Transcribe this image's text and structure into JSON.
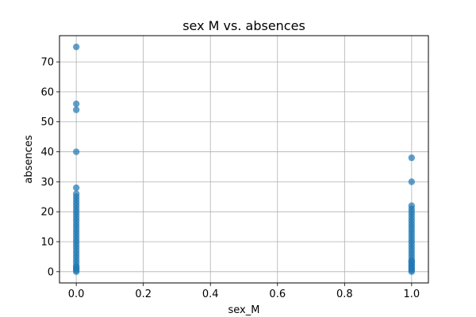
{
  "chart_data": {
    "type": "scatter",
    "title": "sex M vs. absences",
    "xlabel": "sex_M",
    "ylabel": "absences",
    "xlim": [
      -0.05,
      1.05
    ],
    "ylim": [
      -3.75,
      78.75
    ],
    "xticks": [
      "0.0",
      "0.2",
      "0.4",
      "0.6",
      "0.8",
      "1.0"
    ],
    "yticks": [
      "0",
      "10",
      "20",
      "30",
      "40",
      "50",
      "60",
      "70"
    ],
    "grid": true,
    "marker_color": "#1f77b4",
    "marker_alpha": 0.7,
    "series": [
      {
        "x": [
          0,
          0,
          0,
          0,
          0,
          0,
          0,
          0,
          0,
          0,
          0,
          0,
          0,
          0,
          0,
          0,
          0,
          0,
          0,
          0,
          0,
          0,
          0,
          0,
          0,
          0,
          0,
          0,
          0,
          0,
          0,
          0,
          0,
          0,
          1,
          1,
          1,
          1,
          1,
          1,
          1,
          1,
          1,
          1,
          1,
          1,
          1,
          1,
          1,
          1,
          1,
          1,
          1,
          1,
          1,
          1,
          1,
          1,
          1,
          1,
          1,
          1,
          1
        ],
        "y": [
          0,
          1,
          2,
          3,
          4,
          5,
          6,
          7,
          8,
          9,
          10,
          11,
          12,
          13,
          14,
          15,
          16,
          17,
          18,
          19,
          20,
          21,
          22,
          23,
          24,
          25,
          26,
          28,
          40,
          54,
          56,
          75,
          0.5,
          1.5,
          0,
          1,
          2,
          3,
          4,
          5,
          6,
          7,
          8,
          9,
          10,
          11,
          12,
          13,
          14,
          15,
          16,
          17,
          18,
          19,
          20,
          21,
          22,
          30,
          38,
          0.5,
          1.5,
          2.5,
          3.5
        ]
      }
    ]
  }
}
